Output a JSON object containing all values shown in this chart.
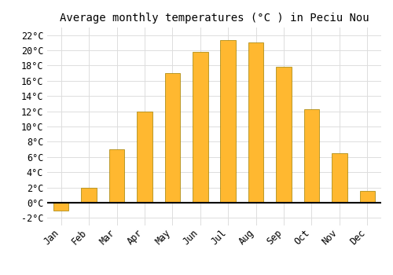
{
  "title": "Average monthly temperatures (°C ) in Peciu Nou",
  "months": [
    "Jan",
    "Feb",
    "Mar",
    "Apr",
    "May",
    "Jun",
    "Jul",
    "Aug",
    "Sep",
    "Oct",
    "Nov",
    "Dec"
  ],
  "values": [
    -1.0,
    2.0,
    7.0,
    12.0,
    17.0,
    19.8,
    21.3,
    21.0,
    17.8,
    12.3,
    6.5,
    1.5
  ],
  "bar_color_top": "#FFB830",
  "bar_color_bottom": "#FFA000",
  "bar_edge_color": "#A08000",
  "background_color": "#FFFFFF",
  "plot_bg_color": "#FFFFFF",
  "grid_color": "#DDDDDD",
  "ylim": [
    -3,
    23
  ],
  "yticks": [
    -2,
    0,
    2,
    4,
    6,
    8,
    10,
    12,
    14,
    16,
    18,
    20,
    22
  ],
  "title_fontsize": 10,
  "tick_fontsize": 8.5,
  "font_family": "monospace",
  "bar_width": 0.55
}
